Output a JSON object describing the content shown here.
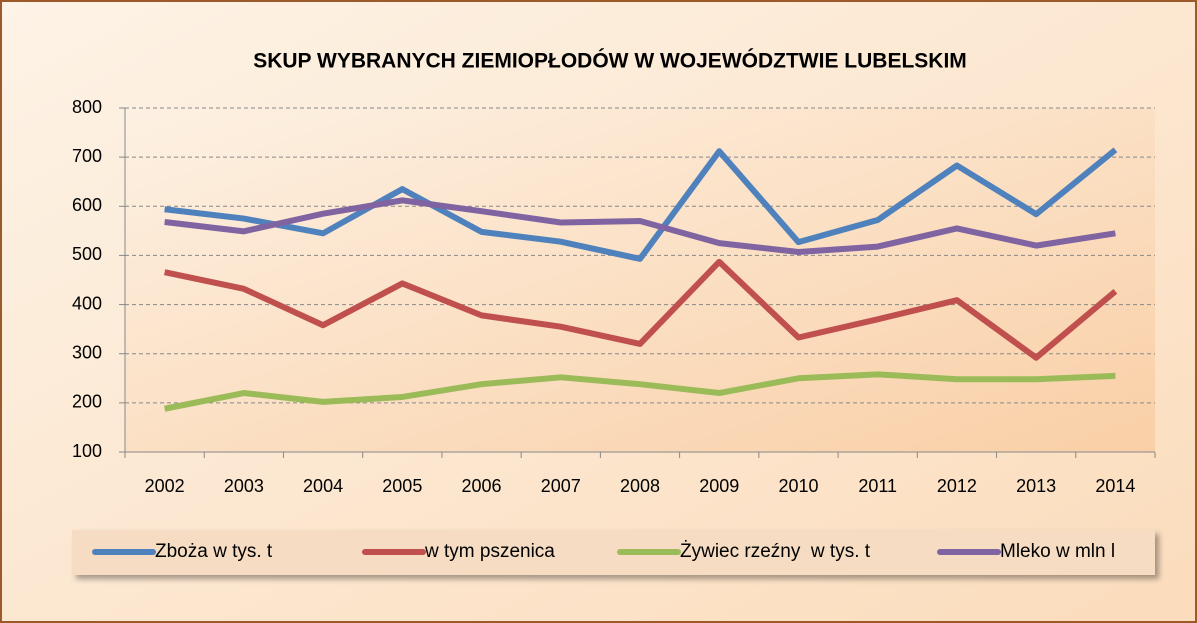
{
  "chart_data": {
    "type": "line",
    "title": "SKUP WYBRANYCH ZIEMIOPŁODÓW W WOJEWÓDZTWIE LUBELSKIM",
    "categories": [
      "2002",
      "2003",
      "2004",
      "2005",
      "2006",
      "2007",
      "2008",
      "2009",
      "2010",
      "2011",
      "2012",
      "2013",
      "2014"
    ],
    "series": [
      {
        "name": "Zboża w tys. t",
        "color": "#4f81bd",
        "values": [
          594,
          575,
          545,
          635,
          548,
          528,
          493,
          712,
          527,
          572,
          683,
          584,
          715
        ]
      },
      {
        "name": "w tym pszenica",
        "color": "#c0504d",
        "values": [
          466,
          432,
          358,
          443,
          378,
          355,
          320,
          487,
          333,
          370,
          409,
          292,
          427
        ]
      },
      {
        "name": "Żywiec rzeźny  w tys. t",
        "color": "#9bbb59",
        "values": [
          188,
          220,
          202,
          212,
          238,
          252,
          238,
          220,
          250,
          258,
          248,
          248,
          255
        ]
      },
      {
        "name": "Mleko w mln l",
        "color": "#8064a2",
        "values": [
          568,
          549,
          585,
          612,
          590,
          567,
          570,
          525,
          507,
          518,
          555,
          520,
          545
        ]
      }
    ],
    "ylim": [
      100,
      800
    ],
    "yticks": [
      100,
      200,
      300,
      400,
      500,
      600,
      700,
      800
    ],
    "grid": true,
    "legend": "bottom"
  }
}
